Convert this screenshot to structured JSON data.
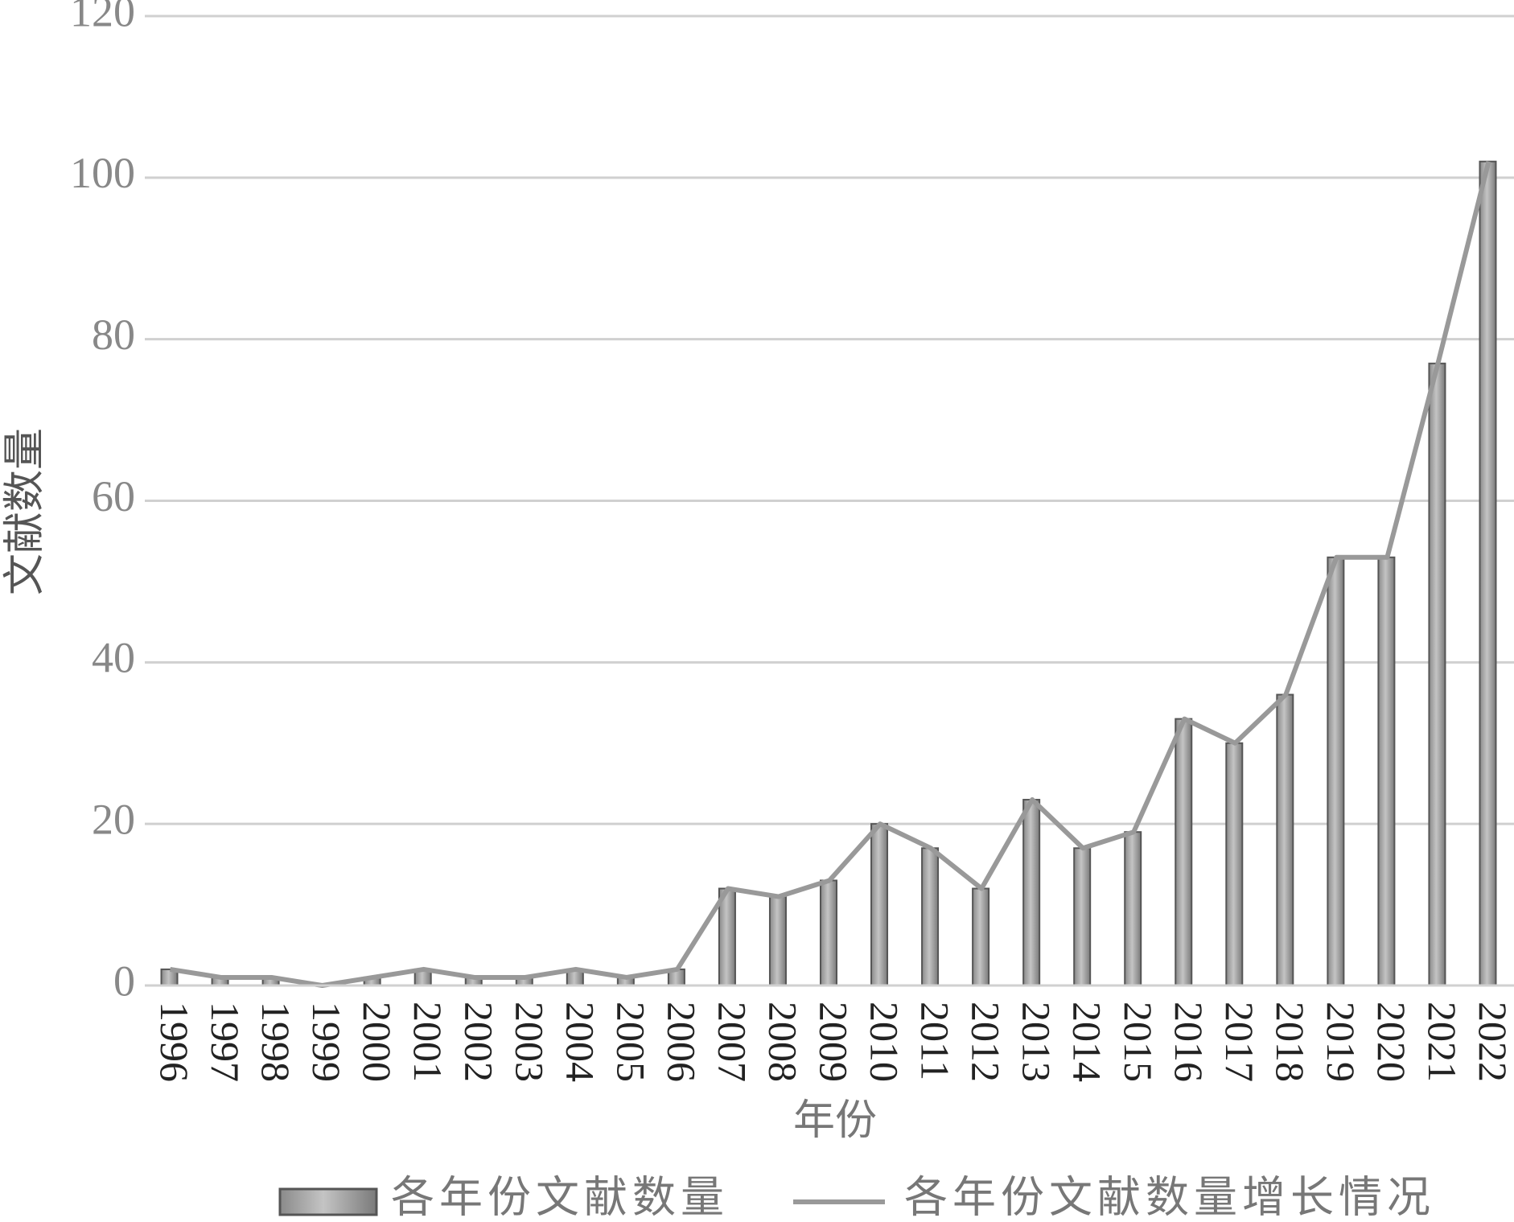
{
  "chart_data": {
    "type": "bar",
    "x_label": "年份",
    "y_label": "文献数量",
    "categories": [
      "1996",
      "1997",
      "1998",
      "1999",
      "2000",
      "2001",
      "2002",
      "2003",
      "2004",
      "2005",
      "2006",
      "2007",
      "2008",
      "2009",
      "2010",
      "2011",
      "2012",
      "2013",
      "2014",
      "2015",
      "2016",
      "2017",
      "2018",
      "2019",
      "2020",
      "2021",
      "2022"
    ],
    "series": [
      {
        "name": "各年份文献数量",
        "type": "bar",
        "color": "#a6a6a6",
        "values": [
          2,
          1,
          1,
          0,
          1,
          2,
          1,
          1,
          2,
          1,
          2,
          12,
          11,
          13,
          20,
          17,
          12,
          23,
          17,
          19,
          33,
          30,
          36,
          53,
          53,
          77,
          102
        ]
      },
      {
        "name": "各年份文献数量增长情况",
        "type": "line",
        "color": "#999999",
        "values": [
          2,
          1,
          1,
          0,
          1,
          2,
          1,
          1,
          2,
          1,
          2,
          12,
          11,
          13,
          20,
          17,
          12,
          23,
          17,
          19,
          33,
          30,
          36,
          53,
          53,
          77,
          102
        ]
      }
    ],
    "ylim": [
      0,
      120
    ],
    "yticks": [
      0,
      20,
      40,
      60,
      80,
      100,
      120
    ],
    "grid": true,
    "legend": "bottom"
  }
}
